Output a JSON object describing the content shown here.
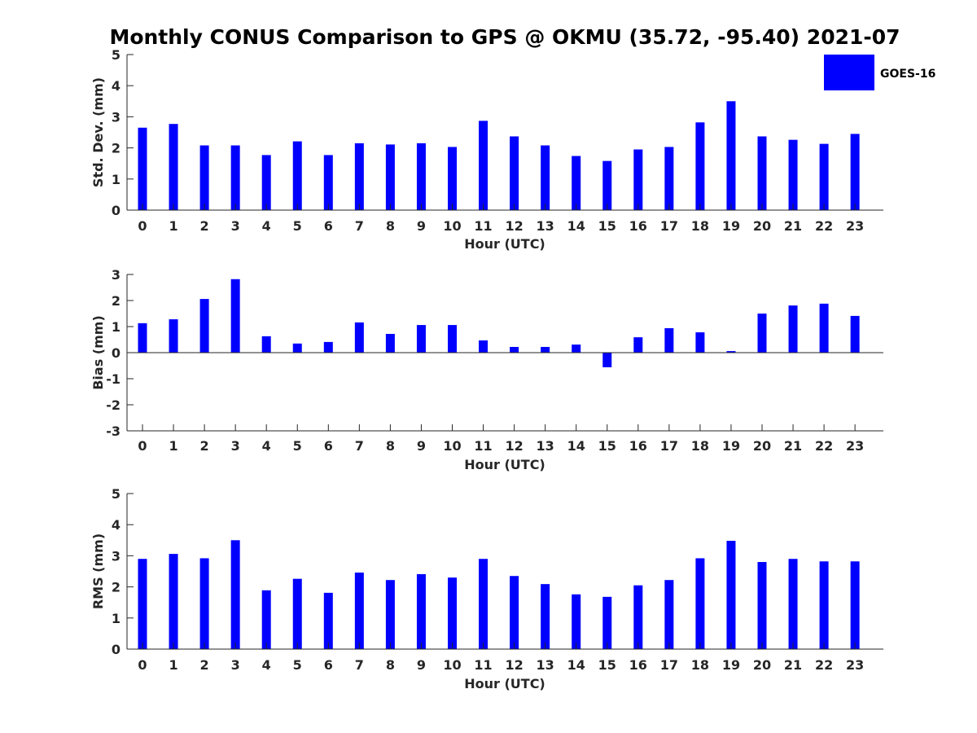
{
  "figure": {
    "title": "Monthly CONUS Comparison to GPS @ OKMU (35.72, -95.40) 2021-07",
    "legend": {
      "label": "GOES-16",
      "color": "#0000ff"
    }
  },
  "chart_data": [
    {
      "type": "bar",
      "title": "Monthly CONUS Comparison to GPS @ OKMU (35.72, -95.40) 2021-07",
      "xlabel": "Hour (UTC)",
      "ylabel": "Std. Dev. (mm)",
      "ylim": [
        0,
        5
      ],
      "yticks": [
        0,
        1,
        2,
        3,
        4,
        5
      ],
      "categories": [
        "0",
        "1",
        "2",
        "3",
        "4",
        "5",
        "6",
        "7",
        "8",
        "9",
        "10",
        "11",
        "12",
        "13",
        "14",
        "15",
        "16",
        "17",
        "18",
        "19",
        "20",
        "21",
        "22",
        "23"
      ],
      "series": [
        {
          "name": "GOES-16",
          "color": "#0000ff",
          "values": [
            2.65,
            2.77,
            2.08,
            2.08,
            1.77,
            2.21,
            1.77,
            2.15,
            2.11,
            2.15,
            2.03,
            2.87,
            2.37,
            2.08,
            1.74,
            1.58,
            1.95,
            2.03,
            2.82,
            3.5,
            2.37,
            2.26,
            2.13,
            2.45
          ]
        }
      ],
      "legend": "top-right",
      "grid": false
    },
    {
      "type": "bar",
      "xlabel": "Hour (UTC)",
      "ylabel": "Bias (mm)",
      "ylim": [
        -3,
        3
      ],
      "yticks": [
        -3,
        -2,
        -1,
        0,
        1,
        2,
        3
      ],
      "categories": [
        "0",
        "1",
        "2",
        "3",
        "4",
        "5",
        "6",
        "7",
        "8",
        "9",
        "10",
        "11",
        "12",
        "13",
        "14",
        "15",
        "16",
        "17",
        "18",
        "19",
        "20",
        "21",
        "22",
        "23"
      ],
      "series": [
        {
          "name": "GOES-16",
          "color": "#0000ff",
          "values": [
            1.13,
            1.28,
            2.06,
            2.82,
            0.63,
            0.35,
            0.41,
            1.16,
            0.72,
            1.06,
            1.06,
            0.47,
            0.22,
            0.22,
            0.31,
            -0.56,
            0.59,
            0.94,
            0.78,
            0.06,
            1.5,
            1.81,
            1.88,
            1.41
          ]
        }
      ],
      "grid": false
    },
    {
      "type": "bar",
      "xlabel": "Hour (UTC)",
      "ylabel": "RMS (mm)",
      "ylim": [
        0,
        5
      ],
      "yticks": [
        0,
        1,
        2,
        3,
        4,
        5
      ],
      "categories": [
        "0",
        "1",
        "2",
        "3",
        "4",
        "5",
        "6",
        "7",
        "8",
        "9",
        "10",
        "11",
        "12",
        "13",
        "14",
        "15",
        "16",
        "17",
        "18",
        "19",
        "20",
        "21",
        "22",
        "23"
      ],
      "series": [
        {
          "name": "GOES-16",
          "color": "#0000ff",
          "values": [
            2.9,
            3.06,
            2.92,
            3.5,
            1.89,
            2.26,
            1.81,
            2.46,
            2.22,
            2.41,
            2.3,
            2.9,
            2.35,
            2.09,
            1.76,
            1.68,
            2.05,
            2.22,
            2.92,
            3.48,
            2.8,
            2.9,
            2.82,
            2.82
          ]
        }
      ],
      "grid": false
    }
  ]
}
